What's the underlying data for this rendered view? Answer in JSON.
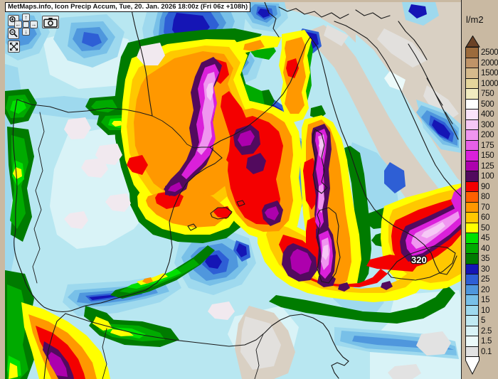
{
  "header": {
    "title": "MetMaps.info, Icon Precip Accum, Tue, 20. Jan. 2026 18:00z (Fri 06z +108h)"
  },
  "toolbar": {
    "zoom_in_icon": "magnifier-plus-icon",
    "zoom_out_icon": "magnifier-minus-icon",
    "camera_icon": "camera-icon",
    "fullscreen_icon": "expand-icon",
    "pan": {
      "up": "↑",
      "down": "↓",
      "left": "←",
      "right": "→"
    }
  },
  "map": {
    "peak_label": "320"
  },
  "legend": {
    "unit": "l/m2",
    "steps": [
      {
        "value": "2500",
        "color": "#9c6b3c"
      },
      {
        "value": "2000",
        "color": "#c09468"
      },
      {
        "value": "1500",
        "color": "#d6ba8c"
      },
      {
        "value": "1000",
        "color": "#e6d69c"
      },
      {
        "value": "750",
        "color": "#f2ecc0"
      },
      {
        "value": "500",
        "color": "#ffffff"
      },
      {
        "value": "400",
        "color": "#fae4fa"
      },
      {
        "value": "300",
        "color": "#f6c8f6"
      },
      {
        "value": "200",
        "color": "#f095f0"
      },
      {
        "value": "175",
        "color": "#e760e7"
      },
      {
        "value": "150",
        "color": "#da20da"
      },
      {
        "value": "125",
        "color": "#ad00ad"
      },
      {
        "value": "100",
        "color": "#520a5e"
      },
      {
        "value": "90",
        "color": "#f40000"
      },
      {
        "value": "80",
        "color": "#ff6000"
      },
      {
        "value": "70",
        "color": "#ff9800"
      },
      {
        "value": "60",
        "color": "#ffc800"
      },
      {
        "value": "50",
        "color": "#ffff00"
      },
      {
        "value": "45",
        "color": "#00e000"
      },
      {
        "value": "40",
        "color": "#00aa00"
      },
      {
        "value": "35",
        "color": "#007b00"
      },
      {
        "value": "30",
        "color": "#1515b5"
      },
      {
        "value": "25",
        "color": "#2e5fd5"
      },
      {
        "value": "20",
        "color": "#4f97dd"
      },
      {
        "value": "15",
        "color": "#78c0e8"
      },
      {
        "value": "10",
        "color": "#9ed9ee"
      },
      {
        "value": "5",
        "color": "#c0eaf3"
      },
      {
        "value": "2.5",
        "color": "#d9f3f7"
      },
      {
        "value": "1.5",
        "color": "#ecfafa"
      },
      {
        "value": "0.1",
        "color": "#e2e2e2"
      }
    ],
    "arrow_top_color": "#6b4226",
    "arrow_bottom_color": "#ffffff"
  },
  "colors": {
    "frame": "#c9b9a2",
    "sea": "#b8e7f1",
    "dry_land": "#d9d0c3",
    "coastline": "#1a1a1a"
  }
}
